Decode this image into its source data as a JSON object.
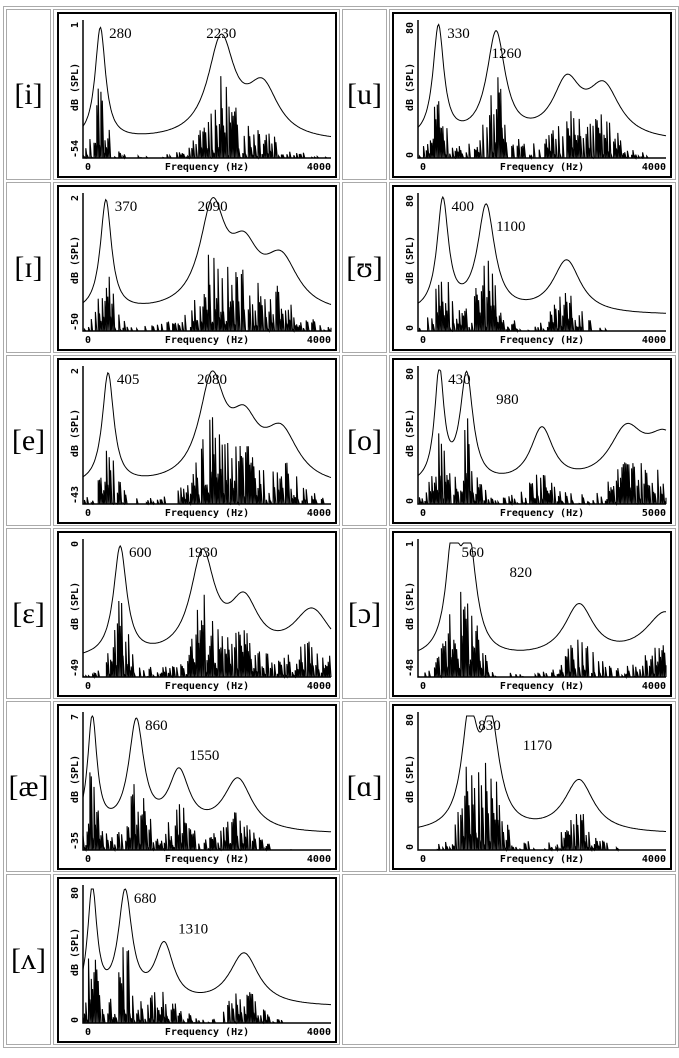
{
  "axis": {
    "xlabel": "Frequency (Hz)",
    "ylabel": "dB (SPL)"
  },
  "chart_data": [
    {
      "type": "line",
      "vowel": "[i]",
      "ymax": 1,
      "ymin": -54,
      "xmin": 0,
      "xmax": 4000,
      "formants": [
        280,
        2230
      ],
      "envelope_peaks_hz": [
        280,
        2230,
        2900
      ]
    },
    {
      "type": "line",
      "vowel": "[u]",
      "ymax": 80,
      "ymin": 0,
      "xmin": 0,
      "xmax": 4000,
      "formants": [
        330,
        1260
      ],
      "envelope_peaks_hz": [
        330,
        1260,
        2400,
        3000
      ]
    },
    {
      "type": "line",
      "vowel": "[ɪ]",
      "ymax": 2,
      "ymin": -50,
      "xmin": 0,
      "xmax": 4000,
      "formants": [
        370,
        2090
      ],
      "envelope_peaks_hz": [
        370,
        2090,
        2600,
        3200
      ]
    },
    {
      "type": "line",
      "vowel": "[ʊ]",
      "ymax": 80,
      "ymin": 0,
      "xmin": 0,
      "xmax": 4000,
      "formants": [
        400,
        1100
      ],
      "envelope_peaks_hz": [
        400,
        1100,
        2400
      ]
    },
    {
      "type": "line",
      "vowel": "[e]",
      "ymax": 2,
      "ymin": -43,
      "xmin": 0,
      "xmax": 4000,
      "formants": [
        405,
        2080
      ],
      "envelope_peaks_hz": [
        405,
        2080,
        2600,
        3200
      ]
    },
    {
      "type": "line",
      "vowel": "[o]",
      "ymax": 80,
      "ymin": 0,
      "xmin": 0,
      "xmax": 5000,
      "formants": [
        430,
        980
      ],
      "envelope_peaks_hz": [
        430,
        980,
        2500,
        4200,
        5000
      ]
    },
    {
      "type": "line",
      "vowel": "[ɛ]",
      "ymax": 0,
      "ymin": -49,
      "xmin": 0,
      "xmax": 4000,
      "formants": [
        600,
        1930
      ],
      "envelope_peaks_hz": [
        600,
        1930,
        2600,
        3700
      ]
    },
    {
      "type": "line",
      "vowel": "[ɔ]",
      "ymax": 1,
      "ymin": -48,
      "xmin": 0,
      "xmax": 4000,
      "formants": [
        560,
        820
      ],
      "envelope_peaks_hz": [
        560,
        820,
        2600,
        4000
      ]
    },
    {
      "type": "line",
      "vowel": "[æ]",
      "ymax": 7,
      "ymin": -35,
      "xmin": 0,
      "xmax": 4000,
      "formants": [
        860,
        1550
      ],
      "envelope_peaks_hz": [
        150,
        860,
        1550,
        2500
      ]
    },
    {
      "type": "line",
      "vowel": "[ɑ]",
      "ymax": 80,
      "ymin": 0,
      "xmin": 0,
      "xmax": 4000,
      "formants": [
        830,
        1170
      ],
      "envelope_peaks_hz": [
        830,
        1170,
        2600
      ]
    },
    {
      "type": "line",
      "vowel": "[ʌ]",
      "ymax": 80,
      "ymin": 0,
      "xmin": 0,
      "xmax": 4000,
      "formants": [
        680,
        1310
      ],
      "envelope_peaks_hz": [
        150,
        680,
        1310,
        2600
      ]
    }
  ]
}
